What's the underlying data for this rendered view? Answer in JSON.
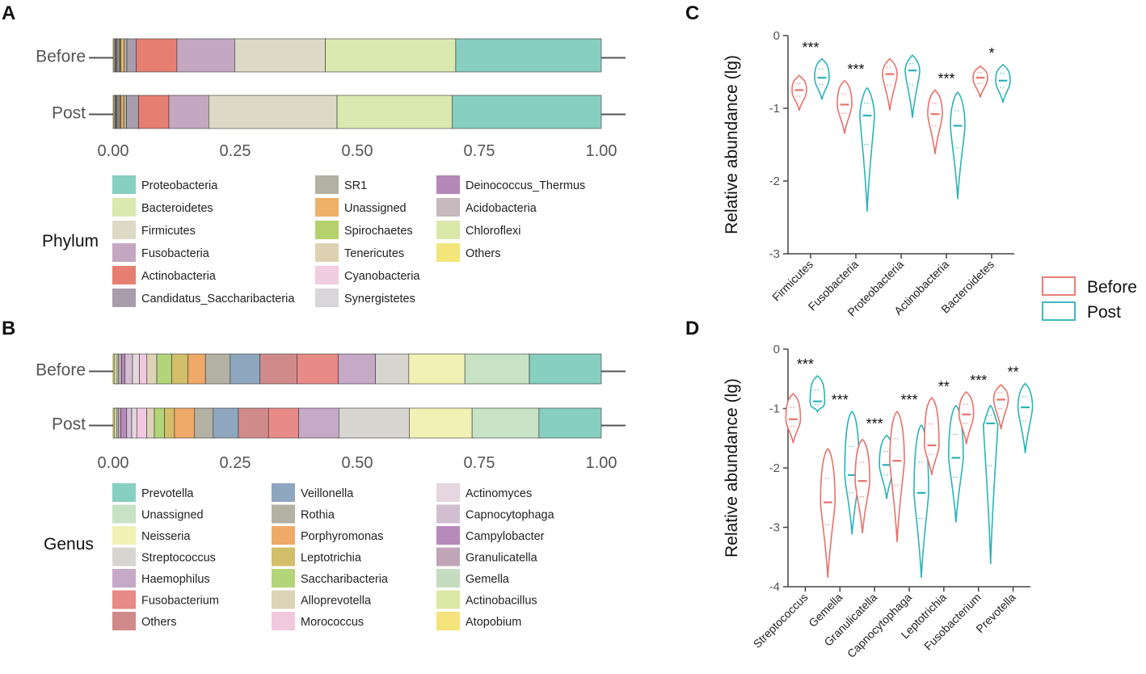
{
  "colors": {
    "before": "#e8716a",
    "post": "#2ab3b8",
    "axis": "#555555",
    "tick_text": "#555555"
  },
  "chart_data": [
    {
      "id": "A",
      "panel_label": "A",
      "type": "stacked-bar-horizontal",
      "xlim": [
        0,
        1
      ],
      "xticks": [
        "0.00",
        "0.25",
        "0.50",
        "0.75",
        "1.00"
      ],
      "xtick_values": [
        0,
        0.25,
        0.5,
        0.75,
        1.0
      ],
      "categories": [
        "Before",
        "Post"
      ],
      "legend_title": "Phylum",
      "legend_columns": [
        [
          "Proteobacteria",
          "Bacteroidetes",
          "Firmicutes",
          "Fusobacteria",
          "Actinobacteria",
          "Candidatus_Saccharibacteria"
        ],
        [
          "SR1",
          "Unassigned",
          "Spirochaetes",
          "Tenericutes",
          "Cyanobacteria",
          "Synergistetes"
        ],
        [
          "Deinococcus_Thermus",
          "Acidobacteria",
          "Chloroflexi",
          "Others"
        ]
      ],
      "legend_colors": {
        "Proteobacteria": "#86cfc1",
        "Bacteroidetes": "#d9e9b0",
        "Firmicutes": "#dcdac5",
        "Fusobacteria": "#c4a7c0",
        "Actinobacteria": "#e67f72",
        "Candidatus_Saccharibacteria": "#a89cad",
        "SR1": "#b3b1a3",
        "Unassigned": "#eeb066",
        "Spirochaetes": "#b4d16c",
        "Tenericutes": "#dfd2b2",
        "Cyanobacteria": "#f0cde0",
        "Synergistetes": "#d8d6d9",
        "Deinococcus_Thermus": "#b487b7",
        "Acidobacteria": "#c7b9be",
        "Chloroflexi": "#d9e7a8",
        "Others": "#f2e67a"
      },
      "series_order": [
        "Others",
        "Chloroflexi",
        "Acidobacteria",
        "Deinococcus_Thermus",
        "Synergistetes",
        "Cyanobacteria",
        "Tenericutes",
        "Spirochaetes",
        "Unassigned",
        "SR1",
        "Candidatus_Saccharibacteria",
        "Actinobacteria",
        "Fusobacteria",
        "Firmicutes",
        "Bacteroidetes",
        "Proteobacteria"
      ],
      "values": {
        "Before": [
          0.002,
          0.002,
          0.002,
          0.002,
          0.002,
          0.002,
          0.002,
          0.002,
          0.006,
          0.006,
          0.019,
          0.083,
          0.118,
          0.185,
          0.266,
          0.297
        ],
        "Post": [
          0.002,
          0.002,
          0.002,
          0.002,
          0.002,
          0.002,
          0.002,
          0.002,
          0.006,
          0.006,
          0.025,
          0.063,
          0.083,
          0.267,
          0.24,
          0.31
        ]
      }
    },
    {
      "id": "B",
      "panel_label": "B",
      "type": "stacked-bar-horizontal",
      "xlim": [
        0,
        1
      ],
      "xticks": [
        "0.00",
        "0.25",
        "0.50",
        "0.75",
        "1.00"
      ],
      "xtick_values": [
        0,
        0.25,
        0.5,
        0.75,
        1.0
      ],
      "categories": [
        "Before",
        "Post"
      ],
      "legend_title": "Genus",
      "legend_columns": [
        [
          "Prevotella",
          "Unassigned",
          "Neisseria",
          "Streptococcus",
          "Haemophilus",
          "Fusobacterium",
          "Others"
        ],
        [
          "Veillonella",
          "Rothia",
          "Porphyromonas",
          "Leptotrichia",
          "Saccharibacteria",
          "Alloprevotella",
          "Morococcus"
        ],
        [
          "Actinomyces",
          "Capnocytophaga",
          "Campylobacter",
          "Granulicatella",
          "Gemella",
          "Actinobacillus",
          "Atopobium"
        ]
      ],
      "legend_colors": {
        "Prevotella": "#86cfc1",
        "Unassigned": "#c7e2c4",
        "Neisseria": "#f1f1b6",
        "Streptococcus": "#d6d5d0",
        "Haemophilus": "#c6a8c7",
        "Fusobacterium": "#e88a86",
        "Others": "#d18a8a",
        "Veillonella": "#8ea6be",
        "Rothia": "#b3b1a3",
        "Porphyromonas": "#efa968",
        "Leptotrichia": "#d3be6a",
        "Saccharibacteria": "#b3d478",
        "Alloprevotella": "#ddd3b7",
        "Morococcus": "#f1c9df",
        "Actinomyces": "#e6d6df",
        "Capnocytophaga": "#d1bfd1",
        "Campylobacter": "#b68ab9",
        "Granulicatella": "#c0a4b7",
        "Gemella": "#c5dcc0",
        "Actinobacillus": "#dce8a6",
        "Atopobium": "#f3e37a"
      },
      "series_order": [
        "Atopobium",
        "Actinobacillus",
        "Gemella",
        "Granulicatella",
        "Campylobacter",
        "Capnocytophaga",
        "Actinomyces",
        "Morococcus",
        "Alloprevotella",
        "Saccharibacteria",
        "Leptotrichia",
        "Porphyromonas",
        "Rothia",
        "Veillonella",
        "Others",
        "Fusobacterium",
        "Haemophilus",
        "Streptococcus",
        "Neisseria",
        "Unassigned",
        "Prevotella"
      ],
      "values": {
        "Before": [
          0.003,
          0.005,
          0.003,
          0.006,
          0.007,
          0.015,
          0.014,
          0.015,
          0.02,
          0.03,
          0.033,
          0.035,
          0.05,
          0.06,
          0.075,
          0.083,
          0.075,
          0.067,
          0.113,
          0.13,
          0.145
        ],
        "Post": [
          0.003,
          0.004,
          0.003,
          0.005,
          0.012,
          0.01,
          0.01,
          0.02,
          0.015,
          0.02,
          0.02,
          0.04,
          0.037,
          0.05,
          0.06,
          0.06,
          0.08,
          0.14,
          0.125,
          0.133,
          0.124
        ]
      }
    },
    {
      "id": "C",
      "panel_label": "C",
      "type": "violin",
      "ylabel": "Relative abundance (lg)",
      "ylim": [
        -3,
        0
      ],
      "yticks": [
        "0",
        "-1",
        "-2",
        "-3"
      ],
      "ytick_values": [
        0,
        -1,
        -2,
        -3
      ],
      "categories": [
        "Firmicutes",
        "Fusobacteria",
        "Proteobacteria",
        "Actinobacteria",
        "Bacteroidetes"
      ],
      "significance": [
        "***",
        "***",
        "",
        "***",
        "*"
      ],
      "series": [
        {
          "name": "Before",
          "medians": [
            -0.75,
            -0.95,
            -0.53,
            -1.08,
            -0.58
          ],
          "mins": [
            -1.03,
            -1.35,
            -1.03,
            -1.63,
            -0.85
          ],
          "maxs": [
            -0.55,
            -0.62,
            -0.32,
            -0.75,
            -0.42
          ]
        },
        {
          "name": "Post",
          "medians": [
            -0.58,
            -1.1,
            -0.48,
            -1.24,
            -0.62
          ],
          "mins": [
            -0.88,
            -2.42,
            -1.13,
            -2.25,
            -0.92
          ],
          "maxs": [
            -0.32,
            -0.72,
            -0.27,
            -0.78,
            -0.4
          ]
        }
      ]
    },
    {
      "id": "D",
      "panel_label": "D",
      "type": "violin",
      "ylabel": "Relative abundance (lg)",
      "ylim": [
        -4,
        0
      ],
      "yticks": [
        "0",
        "-1",
        "-2",
        "-3",
        "-4"
      ],
      "ytick_values": [
        0,
        -1,
        -2,
        -3,
        -4
      ],
      "categories": [
        "Streptococcus",
        "Gemella",
        "Granulicatella",
        "Capnocytophaga",
        "Leptotrichia",
        "Fusobacterium",
        "Prevotella"
      ],
      "significance": [
        "***",
        "***",
        "***",
        "***",
        "**",
        "***",
        "**"
      ],
      "series": [
        {
          "name": "Before",
          "medians": [
            -1.18,
            -2.58,
            -2.22,
            -1.88,
            -1.62,
            -1.1,
            -0.85
          ],
          "mins": [
            -1.58,
            -3.85,
            -3.1,
            -3.25,
            -2.12,
            -1.6,
            -1.35
          ],
          "maxs": [
            -0.75,
            -1.68,
            -1.52,
            -1.05,
            -0.82,
            -0.72,
            -0.6
          ]
        },
        {
          "name": "Post",
          "medians": [
            -0.88,
            -2.12,
            -1.95,
            -2.42,
            -1.83,
            -1.25,
            -0.98
          ],
          "mins": [
            -1.05,
            -3.12,
            -2.52,
            -3.85,
            -2.92,
            -3.62,
            -1.75
          ],
          "maxs": [
            -0.45,
            -1.05,
            -1.45,
            -1.28,
            -0.95,
            -0.95,
            -0.58
          ]
        }
      ]
    }
  ],
  "legend": {
    "entries": [
      {
        "label": "Before",
        "color": "#e8716a"
      },
      {
        "label": "Post",
        "color": "#2ab3b8"
      }
    ]
  }
}
